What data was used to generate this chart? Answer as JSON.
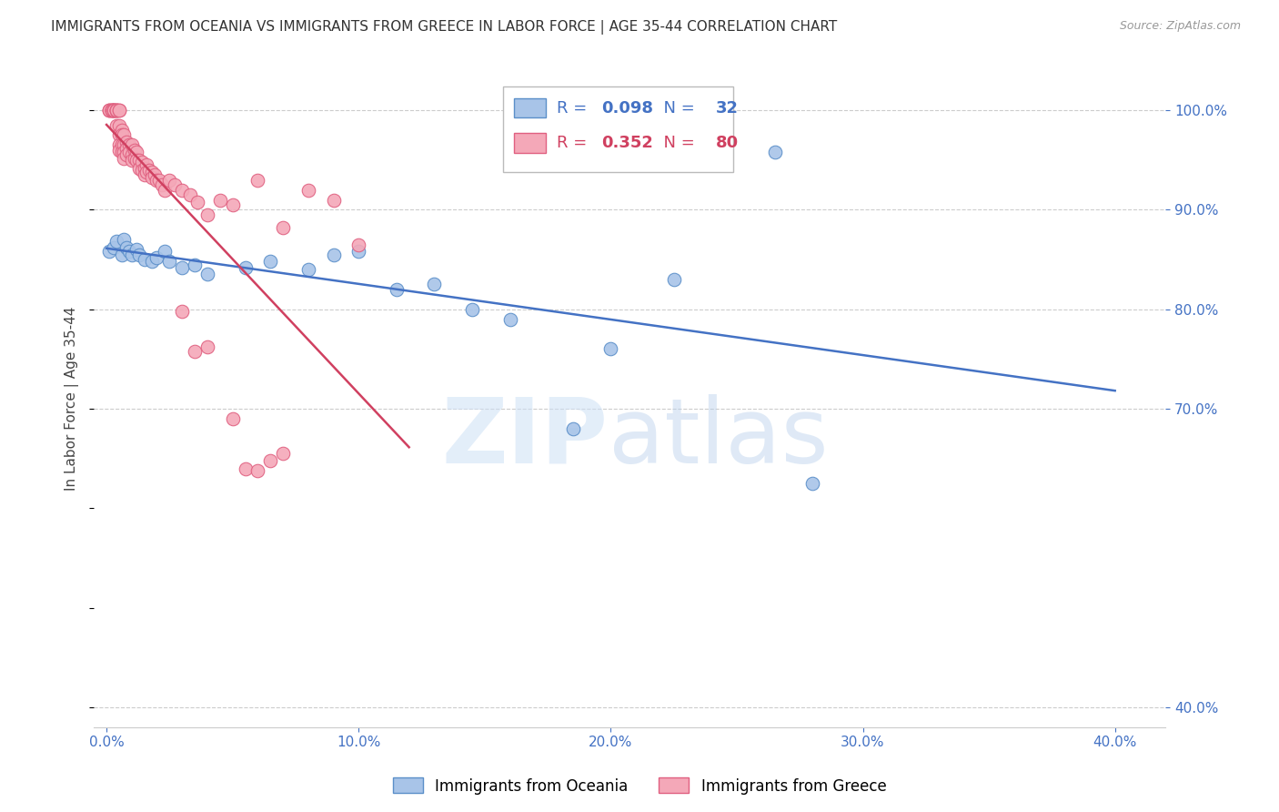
{
  "title": "IMMIGRANTS FROM OCEANIA VS IMMIGRANTS FROM GREECE IN LABOR FORCE | AGE 35-44 CORRELATION CHART",
  "source": "Source: ZipAtlas.com",
  "ylabel": "In Labor Force | Age 35-44",
  "right_y_ticks": [
    0.4,
    0.7,
    0.8,
    0.9,
    1.0
  ],
  "right_y_tick_labels": [
    "40.0%",
    "70.0%",
    "80.0%",
    "90.0%",
    "100.0%"
  ],
  "x_tick_vals": [
    0.0,
    0.1,
    0.2,
    0.3,
    0.4
  ],
  "legend_oceania": "Immigrants from Oceania",
  "legend_greece": "Immigrants from Greece",
  "R_oceania": "0.098",
  "N_oceania": "32",
  "R_greece": "0.352",
  "N_greece": "80",
  "color_oceania_fill": "#a8c4e8",
  "color_oceania_edge": "#5b8fc9",
  "color_greece_fill": "#f4a8b8",
  "color_greece_edge": "#e06080",
  "color_oceania_line": "#4472c4",
  "color_greece_line": "#d04060",
  "color_axis_labels": "#4472c4",
  "ylim_low": 0.38,
  "ylim_high": 1.04,
  "xlim_low": -0.005,
  "xlim_high": 0.42,
  "oceania_x": [
    0.001,
    0.003,
    0.004,
    0.006,
    0.007,
    0.008,
    0.009,
    0.01,
    0.012,
    0.013,
    0.015,
    0.018,
    0.02,
    0.023,
    0.025,
    0.03,
    0.035,
    0.04,
    0.055,
    0.065,
    0.08,
    0.09,
    0.1,
    0.115,
    0.13,
    0.145,
    0.16,
    0.185,
    0.2,
    0.225,
    0.265,
    0.28
  ],
  "oceania_y": [
    0.858,
    0.862,
    0.868,
    0.855,
    0.87,
    0.862,
    0.858,
    0.855,
    0.86,
    0.855,
    0.85,
    0.848,
    0.852,
    0.858,
    0.848,
    0.842,
    0.845,
    0.835,
    0.842,
    0.848,
    0.84,
    0.855,
    0.858,
    0.82,
    0.825,
    0.8,
    0.79,
    0.68,
    0.76,
    0.83,
    0.958,
    0.625
  ],
  "greece_x": [
    0.001,
    0.001,
    0.001,
    0.002,
    0.002,
    0.002,
    0.002,
    0.003,
    0.003,
    0.003,
    0.003,
    0.003,
    0.004,
    0.004,
    0.004,
    0.004,
    0.004,
    0.005,
    0.005,
    0.005,
    0.005,
    0.005,
    0.005,
    0.006,
    0.006,
    0.006,
    0.006,
    0.007,
    0.007,
    0.007,
    0.007,
    0.008,
    0.008,
    0.008,
    0.009,
    0.009,
    0.01,
    0.01,
    0.01,
    0.011,
    0.011,
    0.012,
    0.012,
    0.013,
    0.013,
    0.014,
    0.014,
    0.015,
    0.015,
    0.016,
    0.016,
    0.017,
    0.018,
    0.018,
    0.019,
    0.02,
    0.021,
    0.022,
    0.023,
    0.025,
    0.027,
    0.03,
    0.033,
    0.036,
    0.04,
    0.045,
    0.05,
    0.06,
    0.07,
    0.08,
    0.09,
    0.1,
    0.03,
    0.035,
    0.04,
    0.05,
    0.055,
    0.06,
    0.065,
    0.07
  ],
  "greece_y": [
    1.0,
    1.0,
    1.0,
    1.0,
    1.0,
    1.0,
    1.0,
    1.0,
    1.0,
    1.0,
    1.0,
    1.0,
    1.0,
    1.0,
    1.0,
    1.0,
    0.985,
    1.0,
    1.0,
    0.985,
    0.975,
    0.965,
    0.96,
    0.98,
    0.975,
    0.965,
    0.958,
    0.975,
    0.965,
    0.958,
    0.952,
    0.968,
    0.962,
    0.955,
    0.965,
    0.958,
    0.965,
    0.955,
    0.95,
    0.96,
    0.952,
    0.958,
    0.95,
    0.95,
    0.942,
    0.948,
    0.94,
    0.942,
    0.935,
    0.945,
    0.938,
    0.94,
    0.938,
    0.932,
    0.935,
    0.93,
    0.93,
    0.925,
    0.92,
    0.93,
    0.925,
    0.92,
    0.915,
    0.908,
    0.895,
    0.91,
    0.905,
    0.93,
    0.882,
    0.92,
    0.91,
    0.865,
    0.798,
    0.758,
    0.762,
    0.69,
    0.64,
    0.638,
    0.648,
    0.655
  ]
}
